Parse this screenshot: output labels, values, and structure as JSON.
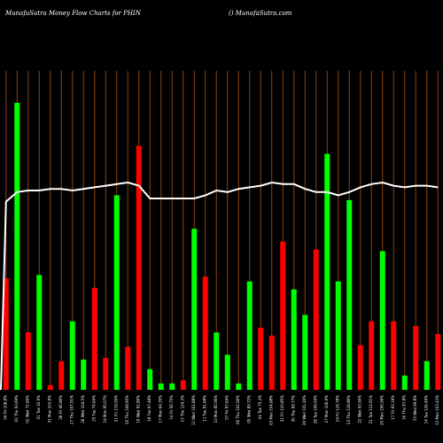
{
  "header": {
    "left_title": "MunafaSutra  Money Flow  Charts for PHIN",
    "right_title": "() MunafaSutra.com"
  },
  "chart_data": {
    "type": "bar",
    "title": "MunafaSutra  Money Flow  Charts for PHIN",
    "grid": "vertical",
    "colors": {
      "background": "#000000",
      "up": "#00ff00",
      "down": "#ff0000",
      "grid": "#8b4513",
      "line": "#ffffff"
    },
    "categories": [
      "04 Fri 108.8%",
      "03 Thu 93.69%",
      "02 Wed 72.84%",
      "01 Tue 32.9%",
      "31 Mon 103.8%",
      "28 Fri 46.86%",
      "27 Thu 107.91%",
      "26 Wed 104.5%",
      "25 Tue 74.64%",
      "24 Mon 95.07%",
      "21 Fri 119.05%",
      "20 Thu 108.95%",
      "19 Wed 92.89%",
      "18 Tue 97.48%",
      "17 Mon 64.35%",
      "14 Fri 56.75%",
      "13 Thu 124.3%",
      "12 Wed 102.88%",
      "11 Tue 91.68%",
      "10 Mon 85.06%",
      "07 Fri 97.64%",
      "06 Thu 102.56%",
      "05 Wed 89.72%",
      "04 Tue 75.3%",
      "03 Mon 104.88%",
      "31 Fri 110.85%",
      "30 Thu 99.77%",
      "29 Wed 101.26%",
      "28 Tue 106.04%",
      "27 Mon 106.9%",
      "24 Fri 124.78%",
      "23 Thu 118.86%",
      "22 Wed 93.56%",
      "21 Tue 112.61%",
      "20 Mon 106.56%",
      "17 Fri 93.19%",
      "16 Thu 97.8%",
      "15 Wed 99.8%",
      "14 Tue 126.49%",
      "13 Mon 103.42%"
    ],
    "values": [
      [
        35,
        "down"
      ],
      [
        90,
        "up"
      ],
      [
        18,
        "down"
      ],
      [
        36,
        "up"
      ],
      [
        1.5,
        "down"
      ],
      [
        9,
        "down"
      ],
      [
        21.5,
        "up"
      ],
      [
        9.5,
        "up"
      ],
      [
        32,
        "down"
      ],
      [
        10,
        "down"
      ],
      [
        61,
        "up"
      ],
      [
        13.5,
        "down"
      ],
      [
        76.5,
        "down"
      ],
      [
        6.5,
        "up"
      ],
      [
        2,
        "up"
      ],
      [
        2,
        "up"
      ],
      [
        3,
        "down"
      ],
      [
        50.5,
        "up"
      ],
      [
        35.5,
        "down"
      ],
      [
        18,
        "up"
      ],
      [
        11,
        "up"
      ],
      [
        2,
        "up"
      ],
      [
        34,
        "up"
      ],
      [
        19.5,
        "down"
      ],
      [
        17,
        "down"
      ],
      [
        46.5,
        "down"
      ],
      [
        31.5,
        "up"
      ],
      [
        23.5,
        "up"
      ],
      [
        44,
        "down"
      ],
      [
        74,
        "up"
      ],
      [
        34,
        "up"
      ],
      [
        59.5,
        "up"
      ],
      [
        14,
        "down"
      ],
      [
        21.5,
        "down"
      ],
      [
        43.5,
        "up"
      ],
      [
        21.5,
        "down"
      ],
      [
        4.5,
        "up"
      ],
      [
        20,
        "down"
      ],
      [
        9,
        "up"
      ],
      [
        17.5,
        "down"
      ]
    ],
    "line_series": {
      "values": [
        59,
        62,
        62.5,
        62.5,
        63,
        63,
        62.5,
        63,
        63.5,
        64,
        64.5,
        65,
        64,
        60,
        60,
        60,
        60,
        60,
        61,
        62.5,
        62,
        63,
        63.5,
        64,
        65,
        64.5,
        64.5,
        63,
        62,
        62,
        61,
        62,
        63.5,
        64.5,
        65,
        64,
        63.5,
        64,
        64,
        63.5
      ]
    },
    "ylim": [
      0,
      100
    ]
  }
}
